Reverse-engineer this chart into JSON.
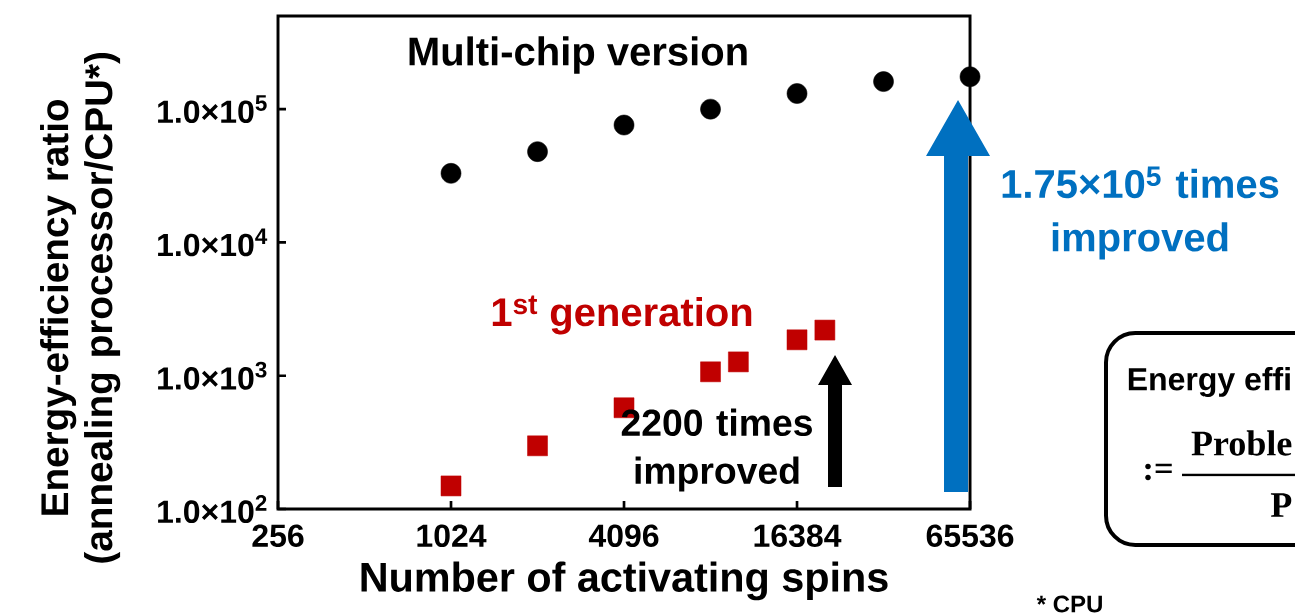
{
  "chart_data": {
    "type": "scatter",
    "xlabel": "Number of activating spins",
    "ylabel": "Energy-efficiency ratio (annealing processor/CPU*)",
    "log": "xy",
    "xlim": [
      256,
      65536
    ],
    "xticks": [
      256,
      1024,
      4096,
      16384,
      65536
    ],
    "ylim": [
      100,
      500000
    ],
    "yticks": [
      {
        "value": 100,
        "label": "1.0×10$^{2}$"
      },
      {
        "value": 1000,
        "label": "1.0×10$^{3}$"
      },
      {
        "value": 10000,
        "label": "1.0×10$^{4}$"
      },
      {
        "value": 100000,
        "label": "1.0×10$^{5}$"
      }
    ],
    "series": [
      {
        "name": "Multi-chip version",
        "color": "#000000",
        "marker": "circle",
        "x": [
          1024,
          2048,
          4096,
          8192,
          16384,
          32768,
          65536
        ],
        "values": [
          33000,
          48000,
          76000,
          100000,
          131000,
          161000,
          175000
        ]
      },
      {
        "name": "1$^{st}$ generation",
        "color": "#c00000",
        "marker": "square",
        "x": [
          1024,
          2048,
          4096,
          8192,
          10240,
          16384,
          20480
        ],
        "values": [
          149,
          298,
          575,
          1070,
          1270,
          1860,
          2200
        ]
      }
    ],
    "annotations": [
      "2200 times improved",
      "1.75×10$^{5}$ times improved",
      "Energy effi",
      ":=",
      "Proble",
      "P",
      "* CPU"
    ]
  }
}
